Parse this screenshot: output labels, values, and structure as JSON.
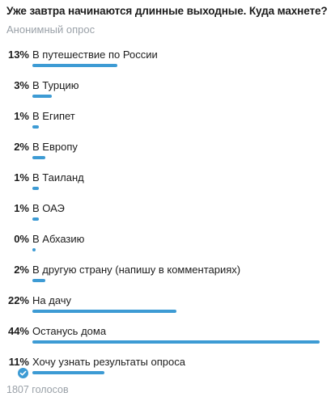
{
  "poll": {
    "question": "Уже завтра начинаются длинные выходные. Куда махнете?",
    "type_label": "Анонимный опрос",
    "votes_label": "1807 голосов",
    "accent_color": "#3d9bd4",
    "options": [
      {
        "percent": "13%",
        "value": 13,
        "label": "В путешествие по России",
        "selected": false
      },
      {
        "percent": "3%",
        "value": 3,
        "label": "В Турцию",
        "selected": false
      },
      {
        "percent": "1%",
        "value": 1,
        "label": "В Египет",
        "selected": false
      },
      {
        "percent": "2%",
        "value": 2,
        "label": "В Европу",
        "selected": false
      },
      {
        "percent": "1%",
        "value": 1,
        "label": "В Таиланд",
        "selected": false
      },
      {
        "percent": "1%",
        "value": 1,
        "label": "В ОАЭ",
        "selected": false
      },
      {
        "percent": "0%",
        "value": 0,
        "label": "В Абхазию",
        "selected": false
      },
      {
        "percent": "2%",
        "value": 2,
        "label": "В другую страну (напишу в комментариях)",
        "selected": false
      },
      {
        "percent": "22%",
        "value": 22,
        "label": "На дачу",
        "selected": false
      },
      {
        "percent": "44%",
        "value": 44,
        "label": "Останусь дома",
        "selected": false
      },
      {
        "percent": "11%",
        "value": 11,
        "label": "Хочу узнать результаты опроса",
        "selected": true,
        "icon": "check-circle-icon"
      }
    ]
  }
}
